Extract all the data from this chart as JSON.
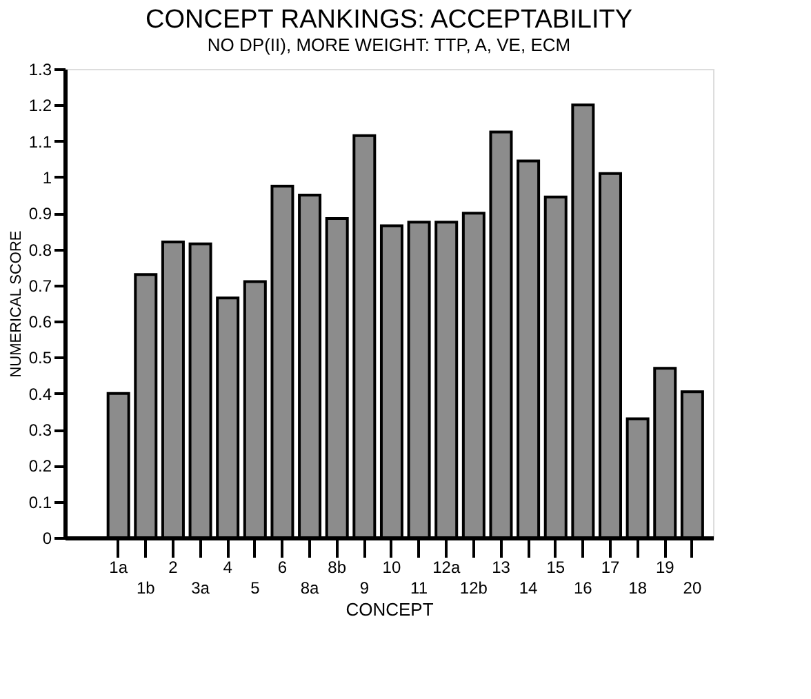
{
  "chart_data": {
    "type": "bar",
    "title": "CONCEPT RANKINGS: ACCEPTABILITY",
    "subtitle": "NO DP(II), MORE WEIGHT: TTP, A, VE, ECM",
    "xlabel": "CONCEPT",
    "ylabel": "NUMERICAL SCORE",
    "categories": [
      "1a",
      "1b",
      "2",
      "3a",
      "4",
      "5",
      "6",
      "8a",
      "8b",
      "9",
      "10",
      "11",
      "12a",
      "12b",
      "13",
      "14",
      "15",
      "16",
      "17",
      "18",
      "19",
      "20"
    ],
    "values": [
      0.4,
      0.73,
      0.82,
      0.815,
      0.665,
      0.71,
      0.975,
      0.95,
      0.885,
      1.115,
      0.865,
      0.875,
      0.875,
      0.9,
      1.125,
      1.045,
      0.945,
      1.2,
      1.01,
      0.33,
      0.47,
      0.405
    ],
    "color": "#8c8c8c",
    "ylim": [
      0,
      1.3
    ],
    "yticks": [
      0,
      0.1,
      0.2,
      0.3,
      0.4,
      0.5,
      0.6,
      0.7,
      0.8,
      0.9,
      1,
      1.1,
      1.2,
      1.3
    ],
    "grid": false
  }
}
